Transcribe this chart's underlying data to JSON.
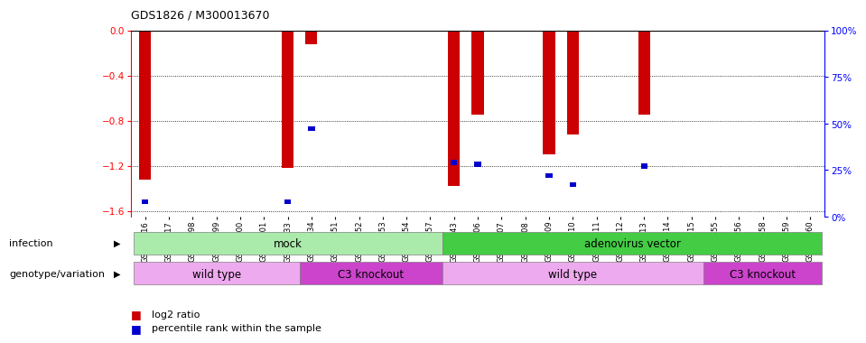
{
  "title": "GDS1826 / M300013670",
  "samples": [
    "GSM87316",
    "GSM87317",
    "GSM93998",
    "GSM93999",
    "GSM94000",
    "GSM94001",
    "GSM93633",
    "GSM93634",
    "GSM93651",
    "GSM93652",
    "GSM93653",
    "GSM93654",
    "GSM93657",
    "GSM86643",
    "GSM87306",
    "GSM87307",
    "GSM87308",
    "GSM87309",
    "GSM87310",
    "GSM87311",
    "GSM87312",
    "GSM87313",
    "GSM87314",
    "GSM87315",
    "GSM93655",
    "GSM93656",
    "GSM93658",
    "GSM93659",
    "GSM93660"
  ],
  "log2_ratio": [
    -1.32,
    0,
    0,
    0,
    0,
    0,
    -1.22,
    -0.12,
    0,
    0,
    0,
    0,
    0,
    -1.38,
    -0.75,
    0,
    0,
    -1.1,
    -0.92,
    0,
    0,
    -0.75,
    0,
    0,
    0,
    0,
    0,
    0,
    0
  ],
  "percentile_rank": [
    8,
    0,
    0,
    0,
    0,
    0,
    8,
    47,
    0,
    0,
    0,
    0,
    0,
    29,
    28,
    0,
    0,
    22,
    17,
    0,
    0,
    27,
    0,
    0,
    0,
    0,
    0,
    0,
    0
  ],
  "infection_groups": [
    {
      "label": "mock",
      "start": 0,
      "end": 13,
      "color": "#AAEAAA"
    },
    {
      "label": "adenovirus vector",
      "start": 13,
      "end": 29,
      "color": "#44CC44"
    }
  ],
  "genotype_groups": [
    {
      "label": "wild type",
      "start": 0,
      "end": 7,
      "color": "#EEAAEE"
    },
    {
      "label": "C3 knockout",
      "start": 7,
      "end": 13,
      "color": "#CC44CC"
    },
    {
      "label": "wild type",
      "start": 13,
      "end": 24,
      "color": "#EEAAEE"
    },
    {
      "label": "C3 knockout",
      "start": 24,
      "end": 29,
      "color": "#CC44CC"
    }
  ],
  "ylim_left": [
    -1.65,
    0.0
  ],
  "yticks_left": [
    0.0,
    -0.4,
    -0.8,
    -1.2,
    -1.6
  ],
  "yticks_right": [
    100,
    75,
    50,
    25,
    0
  ],
  "bar_color": "#CC0000",
  "percentile_color": "#0000CC",
  "background_color": "#FFFFFF",
  "plot_bg_color": "#FFFFFF",
  "infection_label": "infection",
  "genotype_label": "genotype/variation",
  "legend_log2": "log2 ratio",
  "legend_pct": "percentile rank within the sample"
}
